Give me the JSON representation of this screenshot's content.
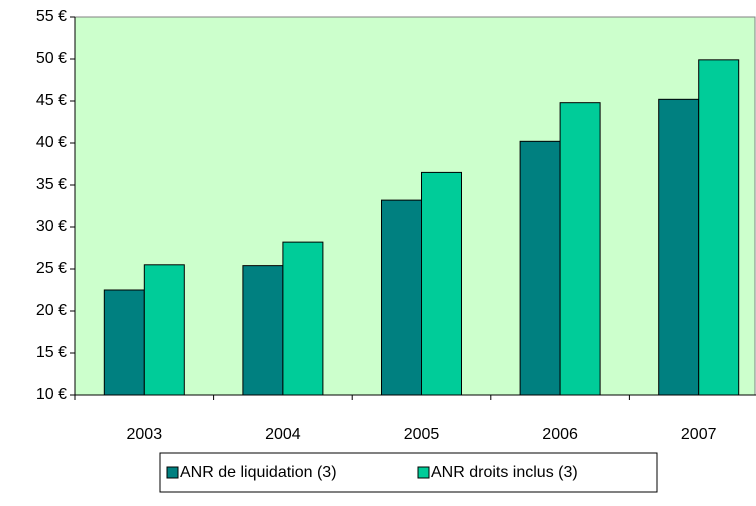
{
  "chart_data": {
    "type": "bar",
    "categories": [
      "2003",
      "2004",
      "2005",
      "2006",
      "2007"
    ],
    "series": [
      {
        "name": "ANR de liquidation (3)",
        "color": "#008080",
        "values": [
          22.5,
          25.4,
          33.2,
          40.2,
          45.2
        ]
      },
      {
        "name": "ANR droits inclus (3)",
        "color": "#00cc99",
        "values": [
          25.5,
          28.2,
          36.5,
          44.8,
          49.9
        ]
      }
    ],
    "ylim": [
      10,
      55
    ],
    "yticks": [
      {
        "value": 10,
        "label": "10 €"
      },
      {
        "value": 15,
        "label": "15 €"
      },
      {
        "value": 20,
        "label": "20 €"
      },
      {
        "value": 25,
        "label": "25 €"
      },
      {
        "value": 30,
        "label": "30 €"
      },
      {
        "value": 35,
        "label": "35 €"
      },
      {
        "value": 40,
        "label": "40 €"
      },
      {
        "value": 45,
        "label": "45 €"
      },
      {
        "value": 50,
        "label": "50 €"
      },
      {
        "value": 55,
        "label": "55 €"
      }
    ],
    "plot_background": "#ccffcc",
    "legend": "bottom"
  }
}
